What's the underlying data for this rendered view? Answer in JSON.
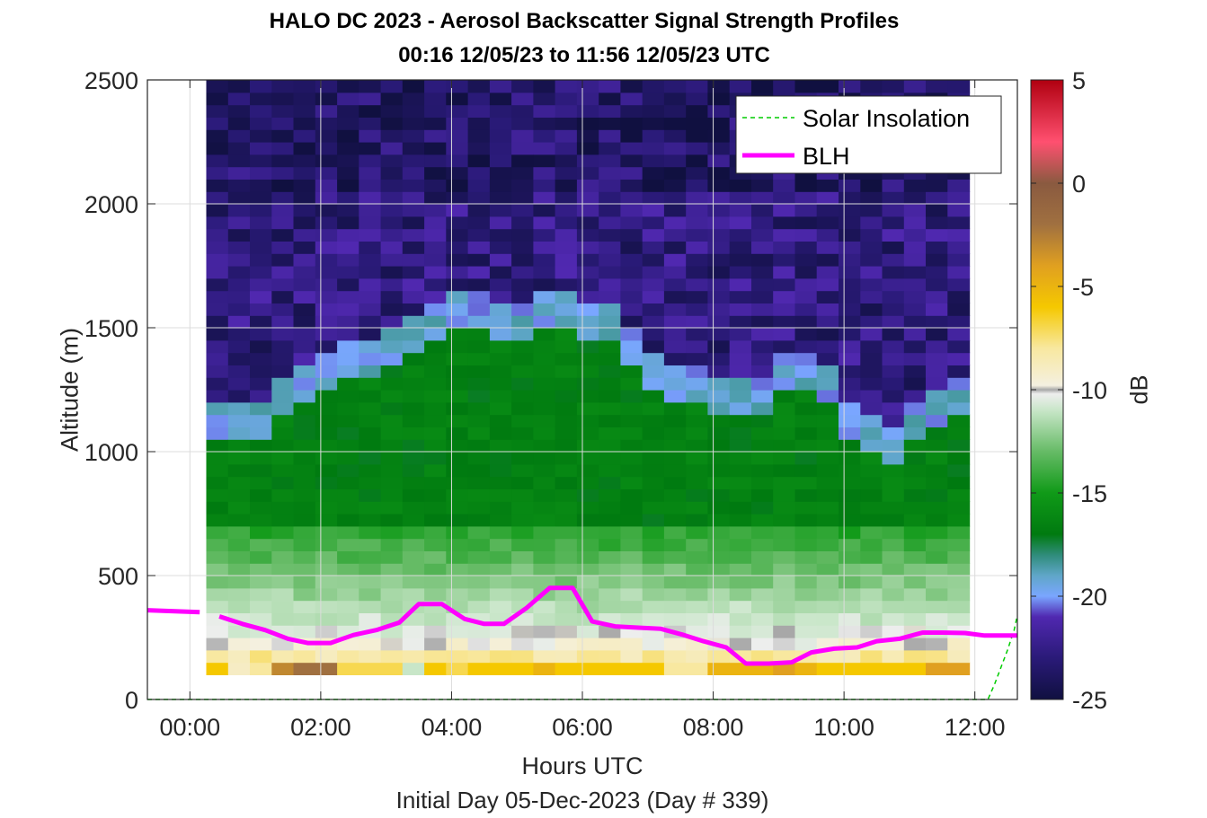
{
  "figure": {
    "title_line1": "HALO DC 2023 - Aerosol Backscatter Signal Strength Profiles",
    "title_line2": "00:16 12/05/23 to 11:56 12/05/23  UTC",
    "subtitle": "Initial Day 05-Dec-2023 (Day # 339)"
  },
  "chart_data": {
    "type": "heatmap",
    "title": "HALO DC 2023 - Aerosol Backscatter Signal Strength Profiles",
    "subtitle": "00:16 12/05/23 to 11:56 12/05/23  UTC",
    "xlabel": "Hours UTC",
    "ylabel": "Altitude (m)",
    "colorbar_label": "dB",
    "x_ticks": [
      "00:00",
      "02:00",
      "04:00",
      "06:00",
      "08:00",
      "10:00",
      "12:00"
    ],
    "x_tick_values": [
      0,
      2,
      4,
      6,
      8,
      10,
      12
    ],
    "xlim": [
      -0.65,
      12.65
    ],
    "y_ticks": [
      "0",
      "500",
      "1000",
      "1500",
      "2000",
      "2500"
    ],
    "y_tick_values": [
      0,
      500,
      1000,
      1500,
      2000,
      2500
    ],
    "ylim": [
      0,
      2500
    ],
    "colorbar_ticks": [
      "5",
      "0",
      "-5",
      "-10",
      "-15",
      "-20",
      "-25"
    ],
    "colorbar_tick_values": [
      5,
      0,
      -5,
      -10,
      -15,
      -20,
      -25
    ],
    "clim": [
      -25,
      5
    ],
    "heatmap": {
      "x_start": 0.25,
      "x_step": 0.3333,
      "columns": 35,
      "y_start": 100,
      "y_step": 50,
      "rows": 48,
      "bl_top_m": [
        1200,
        1200,
        1200,
        1300,
        1350,
        1400,
        1450,
        1450,
        1500,
        1550,
        1600,
        1650,
        1620,
        1600,
        1600,
        1620,
        1650,
        1600,
        1600,
        1500,
        1400,
        1350,
        1350,
        1300,
        1300,
        1300,
        1400,
        1400,
        1350,
        1200,
        1150,
        1100,
        1200,
        1250,
        1300
      ],
      "surface_db": [
        -6,
        -9,
        -8,
        -3,
        -2,
        -2,
        -7,
        -7,
        -7,
        -11,
        -6,
        -7,
        -6,
        -6,
        -6,
        -5,
        -6,
        -6,
        -6,
        -6,
        -6,
        -8,
        -8,
        -5,
        -5,
        -5,
        -4,
        -5,
        -6,
        -6,
        -6,
        -6,
        -6,
        -4,
        -4
      ]
    },
    "series": [
      {
        "name": "Solar Insolation",
        "color": "#00cc00",
        "style": "dashed",
        "x": [
          -0.65,
          12.2,
          12.3,
          12.4,
          12.5,
          12.6,
          12.65
        ],
        "y": [
          0,
          0,
          60,
          130,
          200,
          280,
          340
        ]
      },
      {
        "name": "BLH",
        "color": "#ff00ff",
        "style": "solid",
        "segments": [
          {
            "x": [
              -0.65,
              0.15
            ],
            "y": [
              360,
              352
            ]
          },
          {
            "x": [
              0.45,
              0.8,
              1.15,
              1.5,
              1.8,
              2.15,
              2.5,
              2.85,
              3.2,
              3.5,
              3.85,
              4.2,
              4.5,
              4.8,
              5.15,
              5.5,
              5.85,
              6.15,
              6.5,
              6.85,
              7.2,
              7.55,
              7.85,
              8.2,
              8.5,
              8.85,
              9.2,
              9.5,
              9.85,
              10.2,
              10.5,
              10.85,
              11.2,
              11.5,
              11.85,
              12.15,
              12.65
            ],
            "y": [
              335,
              305,
              280,
              245,
              228,
              228,
              260,
              280,
              310,
              385,
              385,
              325,
              305,
              305,
              370,
              450,
              450,
              315,
              295,
              290,
              285,
              260,
              235,
              210,
              145,
              145,
              150,
              190,
              205,
              210,
              235,
              245,
              270,
              270,
              268,
              258,
              258
            ]
          }
        ]
      }
    ],
    "legend": {
      "location": "top-right",
      "entries": [
        "Solar Insolation",
        "BLH"
      ]
    },
    "grid": true,
    "colormap": {
      "stops": [
        {
          "v": -25,
          "c": "#101040"
        },
        {
          "v": -23,
          "c": "#2a1a78"
        },
        {
          "v": -21,
          "c": "#5028b0"
        },
        {
          "v": -20,
          "c": "#7aa6ff"
        },
        {
          "v": -19,
          "c": "#5fa6c8"
        },
        {
          "v": -18,
          "c": "#2f8c7a"
        },
        {
          "v": -17,
          "c": "#007a10"
        },
        {
          "v": -15,
          "c": "#109a18"
        },
        {
          "v": -13,
          "c": "#66bb66"
        },
        {
          "v": -11,
          "c": "#c8e6c8"
        },
        {
          "v": -10.2,
          "c": "#eeeeee"
        },
        {
          "v": -10,
          "c": "#a8a8a8"
        },
        {
          "v": -9.8,
          "c": "#f4f0e0"
        },
        {
          "v": -8,
          "c": "#f8e8a0"
        },
        {
          "v": -6,
          "c": "#f5c800"
        },
        {
          "v": -4,
          "c": "#e0a020"
        },
        {
          "v": -2,
          "c": "#a07040"
        },
        {
          "v": 0,
          "c": "#8a5a40"
        },
        {
          "v": 2,
          "c": "#ff5070"
        },
        {
          "v": 5,
          "c": "#b00010"
        }
      ]
    }
  }
}
